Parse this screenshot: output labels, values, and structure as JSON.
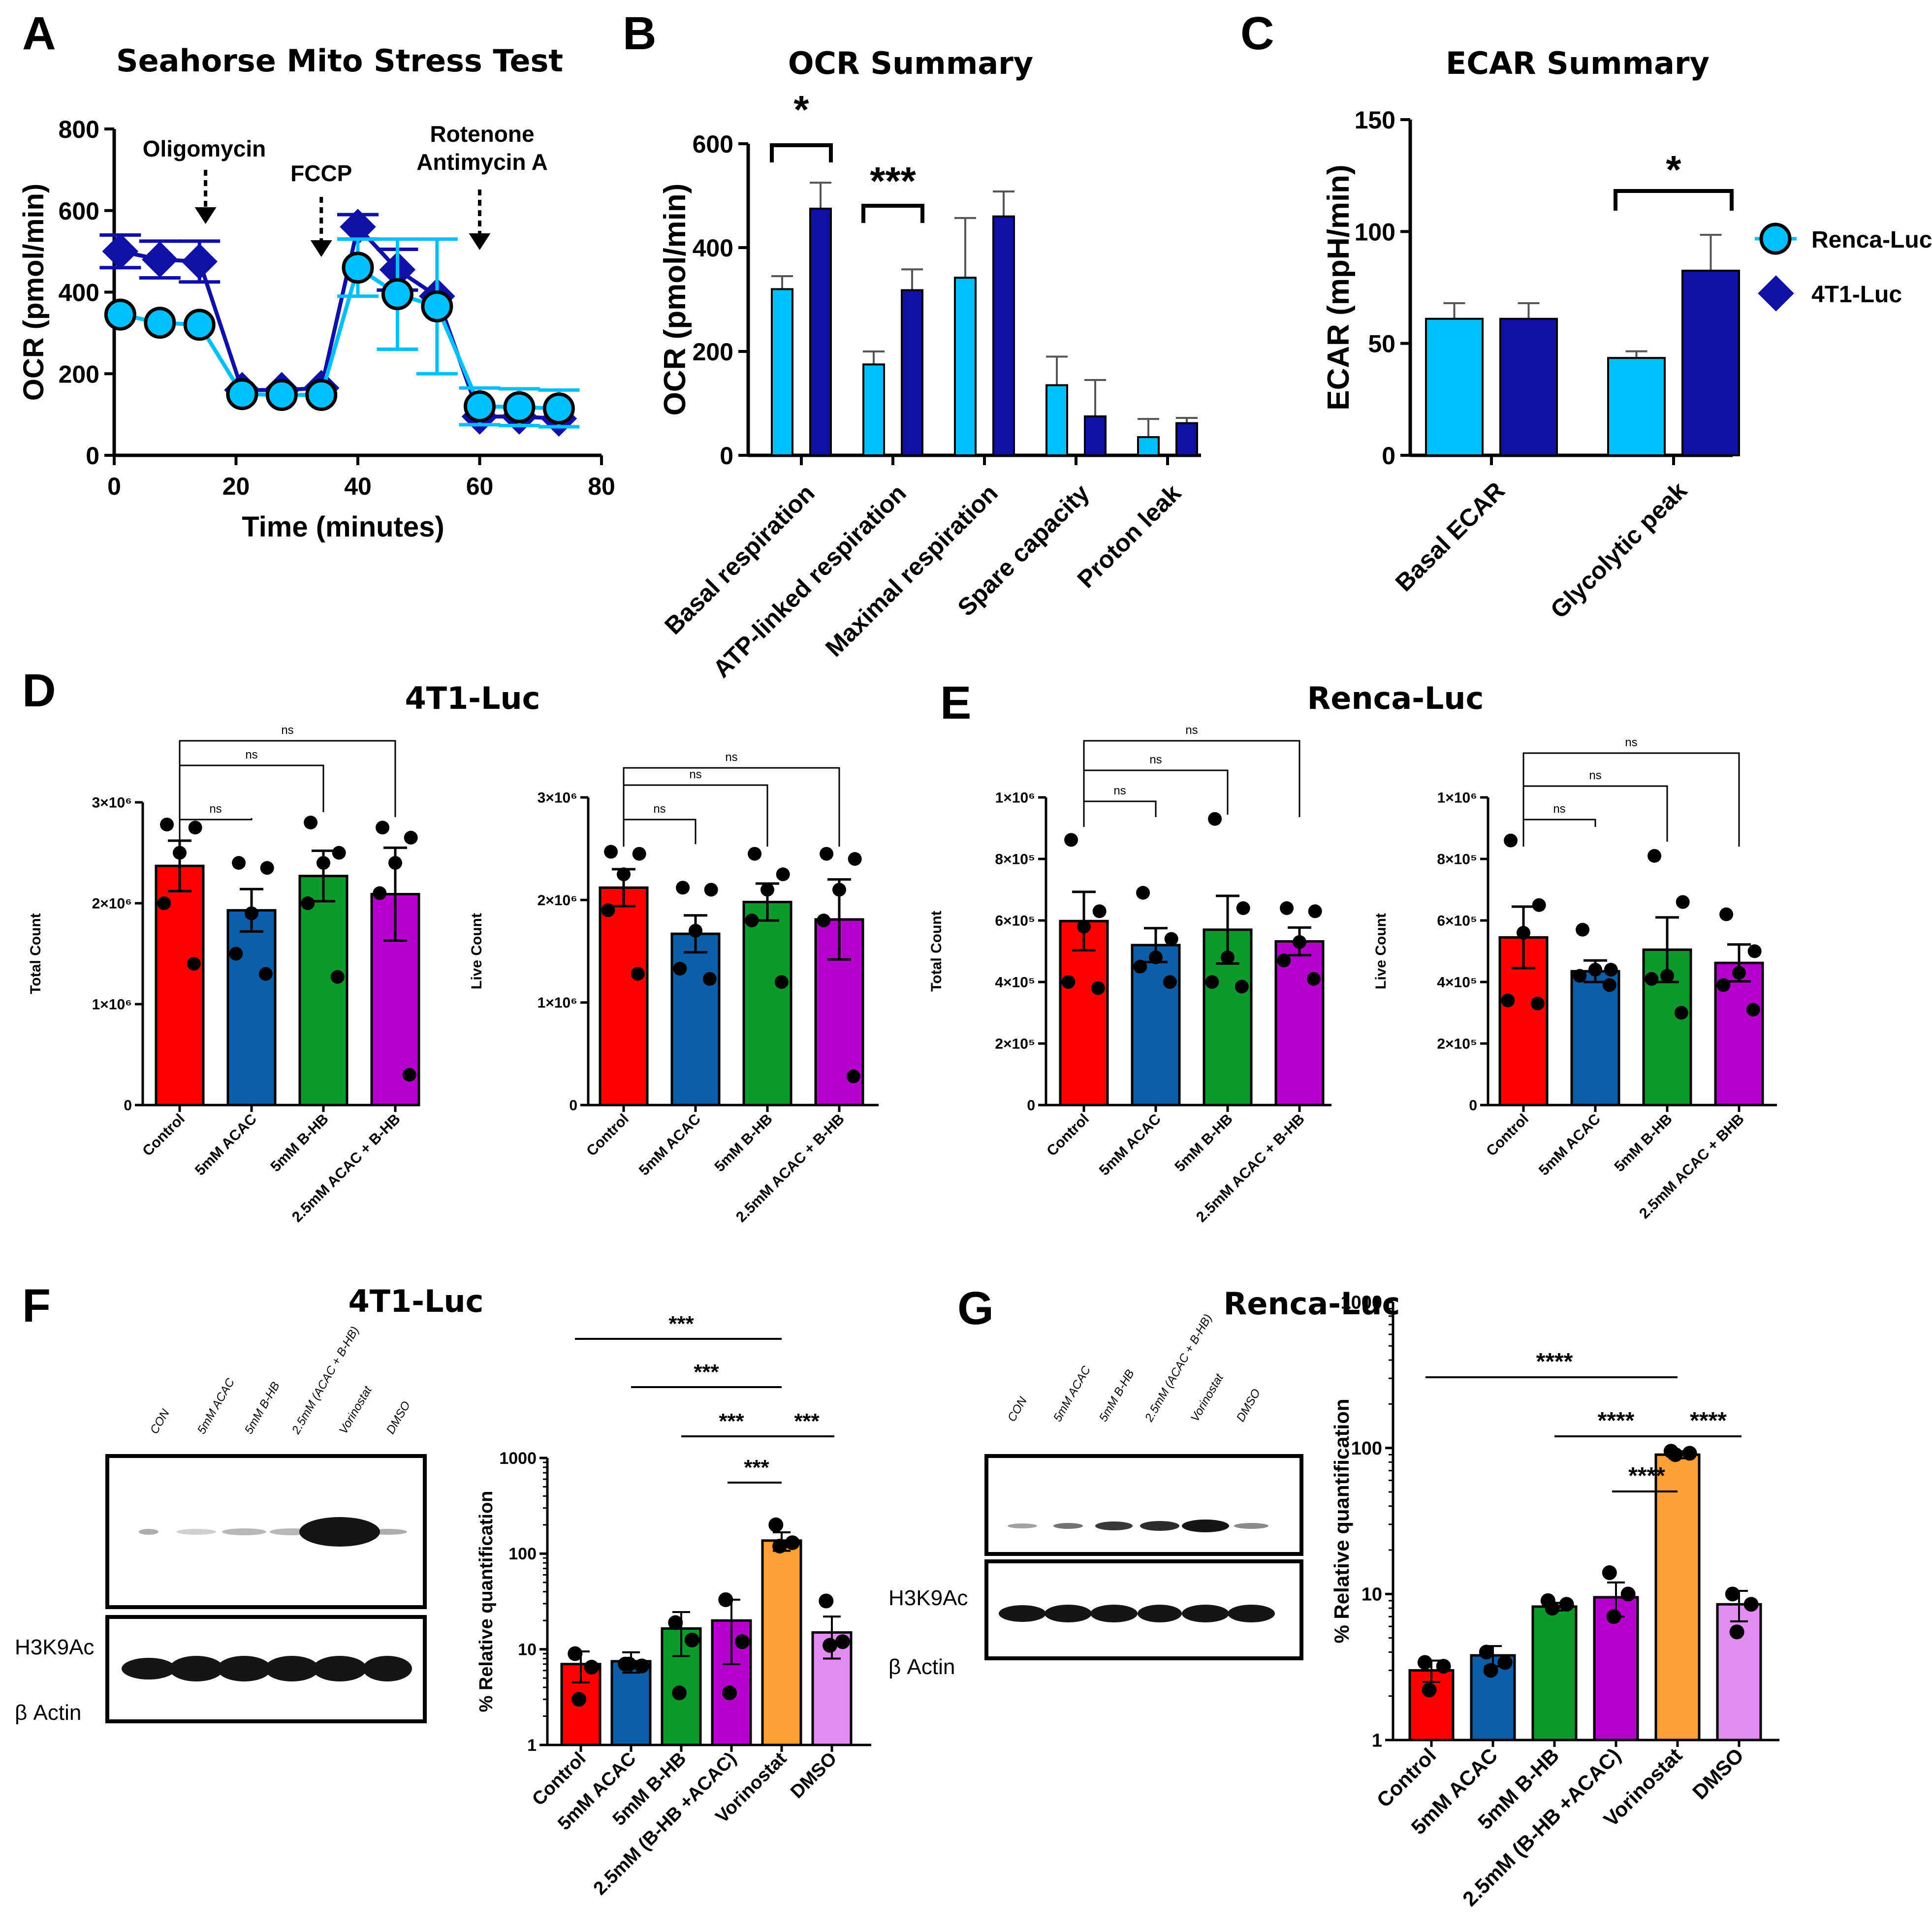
{
  "colors": {
    "light_blue": "#00BFFF",
    "dark_blue": "#1010A8",
    "red": "#FF0000",
    "blue": "#0D5EA8",
    "green": "#0C9A2C",
    "magenta": "#B600CC",
    "orange": "#FF9F36",
    "pink": "#E08CF0",
    "western_band": "#151515",
    "western_frame": "#000000"
  },
  "panels": {
    "A": "A",
    "B": "B",
    "C": "C",
    "D": "D",
    "E": "E",
    "F": "F",
    "G": "G"
  },
  "legend": {
    "series": [
      "Renca-Luc",
      "4T1-Luc"
    ]
  },
  "chart_data": [
    {
      "id": "A",
      "type": "line",
      "title": "Seahorse Mito Stress Test",
      "xlabel": "Time (minutes)",
      "ylabel": "OCR (pmol/min)",
      "xlim": [
        0,
        80
      ],
      "ylim": [
        0,
        800
      ],
      "xticks": [
        0,
        20,
        40,
        60,
        80
      ],
      "yticks": [
        0,
        200,
        400,
        600,
        800
      ],
      "annotations": [
        {
          "text": "Oligomycin",
          "x": 15
        },
        {
          "text": "FCCP",
          "x": 34
        },
        {
          "text": "Rotenone",
          "x": 60
        },
        {
          "text": "Antimycin A",
          "x": 60
        }
      ],
      "series": [
        {
          "name": "Renca-Luc",
          "x": [
            1,
            7.5,
            14,
            21,
            27.5,
            34,
            40,
            46.5,
            53,
            60,
            66.5,
            73
          ],
          "y": [
            345,
            325,
            320,
            150,
            148,
            148,
            460,
            395,
            365,
            120,
            118,
            115
          ],
          "err": [
            0,
            0,
            0,
            0,
            0,
            0,
            70,
            135,
            165,
            45,
            45,
            45
          ]
        },
        {
          "name": "4T1-Luc",
          "x": [
            1,
            7.5,
            14,
            21,
            27.5,
            34,
            40,
            46.5,
            53,
            60,
            66.5,
            73
          ],
          "y": [
            500,
            480,
            475,
            160,
            160,
            165,
            560,
            455,
            390,
            95,
            95,
            90
          ],
          "err": [
            40,
            45,
            50,
            0,
            0,
            0,
            30,
            50,
            0,
            0,
            0,
            0
          ]
        }
      ]
    },
    {
      "id": "B",
      "type": "bar",
      "title": "OCR Summary",
      "ylabel": "OCR (pmol/min)",
      "ylim": [
        0,
        600
      ],
      "yticks": [
        0,
        200,
        400,
        600
      ],
      "categories": [
        "Basal respiration",
        "ATP-linked respiration",
        "Maximal respiration",
        "Spare capacity",
        "Proton leak"
      ],
      "series": [
        {
          "name": "Renca-Luc",
          "values": [
            320,
            175,
            342,
            135,
            35
          ],
          "err": [
            25,
            25,
            115,
            55,
            35
          ]
        },
        {
          "name": "4T1-Luc",
          "values": [
            475,
            318,
            460,
            75,
            62
          ],
          "err": [
            50,
            40,
            48,
            70,
            10
          ]
        }
      ],
      "significance": [
        {
          "label": "*",
          "category": 0
        },
        {
          "label": "***",
          "category": 1
        }
      ]
    },
    {
      "id": "C",
      "type": "bar",
      "title": "ECAR Summary",
      "ylabel": "ECAR (mpH/min)",
      "ylim": [
        0,
        150
      ],
      "yticks": [
        0,
        50,
        100,
        150
      ],
      "categories": [
        "Basal ECAR",
        "Glycolytic peak"
      ],
      "series": [
        {
          "name": "Renca-Luc",
          "values": [
            61,
            43.5
          ],
          "err": [
            7,
            3
          ]
        },
        {
          "name": "4T1-Luc",
          "values": [
            61,
            82.5
          ],
          "err": [
            7,
            16
          ]
        }
      ],
      "significance": [
        {
          "label": "*",
          "category": 1
        }
      ]
    },
    {
      "id": "D1",
      "type": "bar",
      "title": "4T1-Luc",
      "ylabel": "Total Count",
      "ylim": [
        0,
        3000000
      ],
      "yticks": [
        "0",
        "1×10⁶",
        "2×10⁶",
        "3×10⁶"
      ],
      "categories": [
        "Control",
        "5mM ACAC",
        "5mM B-HB",
        "2.5mM ACAC + B-HB"
      ],
      "values": [
        2370000,
        1930000,
        2270000,
        2090000
      ],
      "err": [
        250000,
        210000,
        250000,
        460000
      ],
      "points": [
        [
          2780000,
          2750000,
          2500000,
          2000000,
          1400000
        ],
        [
          2400000,
          2350000,
          1900000,
          1500000,
          1300000
        ],
        [
          2800000,
          2500000,
          2400000,
          2000000,
          1270000
        ],
        [
          2750000,
          2650000,
          2400000,
          2100000,
          300000
        ]
      ],
      "comparisons": [
        "ns",
        "ns",
        "ns"
      ]
    },
    {
      "id": "D2",
      "type": "bar",
      "ylabel": "Live Count",
      "ylim": [
        0,
        3000000
      ],
      "yticks": [
        "0",
        "1×10⁶",
        "2×10⁶",
        "3×10⁶"
      ],
      "categories": [
        "Control",
        "5mM ACAC",
        "5mM B-HB",
        "2.5mM ACAC + B-HB"
      ],
      "values": [
        2120000,
        1670000,
        1980000,
        1810000
      ],
      "err": [
        180000,
        180000,
        180000,
        390000
      ],
      "points": [
        [
          2470000,
          2450000,
          2250000,
          1900000,
          1280000
        ],
        [
          2120000,
          2100000,
          1700000,
          1330000,
          1230000
        ],
        [
          2450000,
          2250000,
          2100000,
          1800000,
          1200000
        ],
        [
          2450000,
          2400000,
          2100000,
          1800000,
          280000
        ]
      ],
      "comparisons": [
        "ns",
        "ns",
        "ns"
      ]
    },
    {
      "id": "E1",
      "type": "bar",
      "title": "Renca-Luc",
      "ylabel": "Total Count",
      "ylim": [
        0,
        1000000
      ],
      "yticks": [
        "0",
        "2×10⁵",
        "4×10⁵",
        "6×10⁵",
        "8×10⁵",
        "1×10⁶"
      ],
      "categories": [
        "Control",
        "5mM ACAC",
        "5mM B-HB",
        "2.5mM ACAC + B-HB"
      ],
      "values": [
        598000,
        520000,
        570000,
        532000
      ],
      "err": [
        95000,
        55000,
        110000,
        45000
      ],
      "points": [
        [
          862000,
          630000,
          580000,
          400000,
          380000
        ],
        [
          690000,
          540000,
          480000,
          450000,
          400000
        ],
        [
          930000,
          640000,
          480000,
          400000,
          385000
        ],
        [
          640000,
          630000,
          530000,
          470000,
          410000
        ]
      ],
      "comparisons": [
        "ns",
        "ns",
        "ns"
      ]
    },
    {
      "id": "E2",
      "type": "bar",
      "ylabel": "Live Count",
      "ylim": [
        0,
        1000000
      ],
      "yticks": [
        "0",
        "2×10⁵",
        "4×10⁵",
        "6×10⁵",
        "8×10⁵",
        "1×10⁶"
      ],
      "categories": [
        "Control",
        "5mM ACAC",
        "5mM B-HB",
        "2.5mM ACAC + BHB"
      ],
      "values": [
        545000,
        435000,
        505000,
        462000
      ],
      "err": [
        100000,
        35000,
        105000,
        60000
      ],
      "points": [
        [
          860000,
          650000,
          560000,
          340000,
          330000
        ],
        [
          570000,
          440000,
          440000,
          420000,
          390000
        ],
        [
          810000,
          660000,
          420000,
          410000,
          300000
        ],
        [
          620000,
          500000,
          430000,
          390000,
          310000
        ]
      ],
      "comparisons": [
        "ns",
        "ns",
        "ns"
      ]
    },
    {
      "id": "F",
      "type": "bar",
      "scale": "log",
      "title": "4T1-Luc",
      "ylabel": "% Relative quantification",
      "ylim": [
        1,
        1000
      ],
      "yticks": [
        "1",
        "10",
        "100",
        "1000"
      ],
      "categories": [
        "Control",
        "5mM ACAC",
        "5mM B-HB",
        "2.5mM (B-HB +ACAC)",
        "Vorinostat",
        "DMSO"
      ],
      "values": [
        7,
        7.5,
        16.5,
        20,
        137,
        15
      ],
      "err": [
        2.5,
        1.8,
        8,
        13,
        30,
        7
      ],
      "points": [
        [
          9,
          6.5,
          3
        ],
        [
          7,
          6.7,
          7
        ],
        [
          19,
          12.5,
          3.5
        ],
        [
          33,
          12,
          3.5
        ],
        [
          200,
          130,
          120
        ],
        [
          32,
          12,
          11
        ]
      ],
      "comparisons": [
        {
          "from": 0,
          "to": 4,
          "label": "***"
        },
        {
          "from": 1,
          "to": 4,
          "label": "***"
        },
        {
          "from": 2,
          "to": 4,
          "label": "***"
        },
        {
          "from": 4,
          "to": 5,
          "label": "***"
        },
        {
          "from": 3,
          "to": 4,
          "label": "***"
        }
      ]
    },
    {
      "id": "G",
      "type": "bar",
      "scale": "log",
      "title": "Renca-Luc",
      "ylabel": "% Relative quantification",
      "ylim": [
        1,
        1000
      ],
      "yticks": [
        "1",
        "10",
        "100",
        "1000"
      ],
      "categories": [
        "Control",
        "5mM ACAC",
        "5mM B-HB",
        "2.5mM (B-HB +ACAC)",
        "Vorinostat",
        "DMSO"
      ],
      "values": [
        3,
        3.8,
        8.2,
        9.5,
        90,
        8.5
      ],
      "err": [
        0.5,
        0.6,
        0.5,
        2.5,
        5,
        2
      ],
      "points": [
        [
          3.4,
          3.2,
          2.2
        ],
        [
          4,
          3.4,
          3
        ],
        [
          9,
          8.5,
          8
        ],
        [
          14,
          10,
          7
        ],
        [
          95,
          92,
          90
        ],
        [
          10,
          8.5,
          5.5
        ]
      ],
      "comparisons": [
        {
          "from": 0,
          "to": 4,
          "label": "****"
        },
        {
          "from": 2,
          "to": 4,
          "label": "****"
        },
        {
          "from": 4,
          "to": 5,
          "label": "****"
        },
        {
          "from": 3,
          "to": 4,
          "label": "****"
        }
      ]
    }
  ],
  "western_F": {
    "lanes": [
      "CON",
      "5mM ACAC",
      "5mM B-HB",
      "2.5mM (ACAC + B-HB)",
      "Vorinostat",
      "DMSO"
    ],
    "row1": "H3K9Ac",
    "row2": "β Actin"
  },
  "western_G": {
    "lanes": [
      "CON",
      "5mM ACAC",
      "5mM B-HB",
      "2.5mM (ACAC + B-HB)",
      "Vorinostat",
      "DMSO"
    ],
    "row1": "H3K9Ac",
    "row2": "β Actin"
  }
}
